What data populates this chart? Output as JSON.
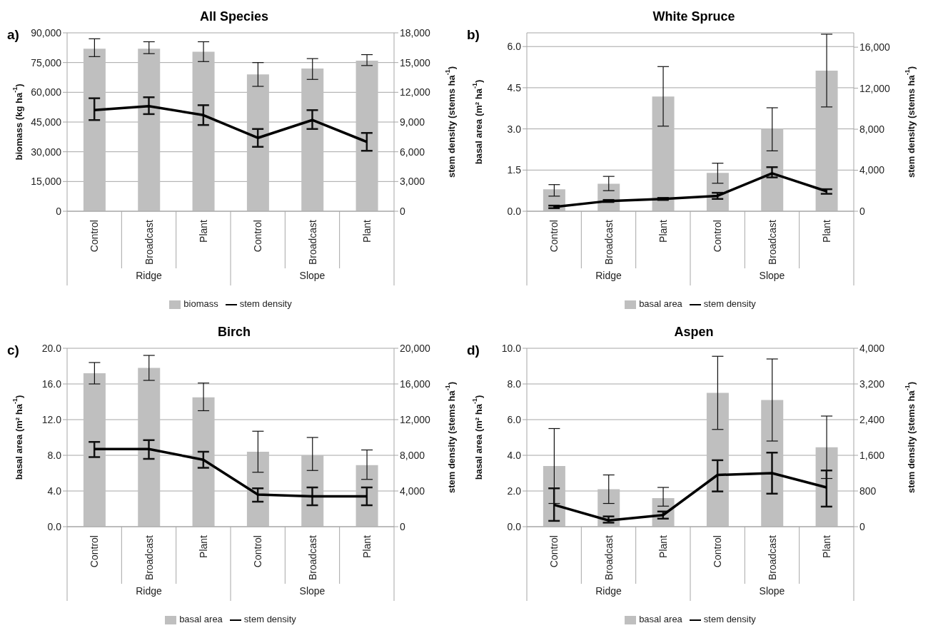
{
  "chart_data": [
    {
      "type": "bar",
      "title": "All Species",
      "annotations": [
        "a)",
        "Ridge",
        "Slope"
      ],
      "categories": [
        "Control",
        "Broadcast",
        "Plant",
        "Control",
        "Broadcast",
        "Plant"
      ],
      "ylabel": "biomass  (kg ha$^{-1}$)",
      "y2label": "stem density (stems ha$^{-1}$)",
      "ylim": [
        0,
        90000
      ],
      "yticks": [
        {
          "value": 0,
          "label": "0"
        },
        {
          "value": 15000,
          "label": "15,000"
        },
        {
          "value": 30000,
          "label": "30,000"
        },
        {
          "value": 45000,
          "label": "45,000"
        },
        {
          "value": 60000,
          "label": "60,000"
        },
        {
          "value": 75000,
          "label": "75,000"
        },
        {
          "value": 90000,
          "label": "90,000"
        }
      ],
      "y2lim": [
        0,
        18000
      ],
      "y2ticks": [
        {
          "value": 0,
          "label": "0"
        },
        {
          "value": 3000,
          "label": "3,000"
        },
        {
          "value": 6000,
          "label": "6,000"
        },
        {
          "value": 9000,
          "label": "9,000"
        },
        {
          "value": 12000,
          "label": "12,000"
        },
        {
          "value": 15000,
          "label": "15,000"
        },
        {
          "value": 18000,
          "label": "18,000"
        }
      ],
      "grid": "y",
      "legend": "bottom",
      "marker": "none",
      "series": [
        {
          "name": "biomass",
          "color": "#bfbfbf",
          "values": [
            82000,
            82000,
            80500,
            69000,
            72000,
            76000
          ],
          "errors": [
            [
              78000,
              87000
            ],
            [
              79500,
              85500
            ],
            [
              75500,
              85500
            ],
            [
              63000,
              75000
            ],
            [
              66500,
              77000
            ],
            [
              73500,
              79000
            ]
          ]
        },
        {
          "name": "stem density",
          "type": "line",
          "axis": "y2",
          "color": "#000000",
          "values": [
            10200,
            10600,
            9700,
            7400,
            9200,
            7000
          ],
          "errors": [
            [
              9200,
              11400
            ],
            [
              9800,
              11500
            ],
            [
              8700,
              10700
            ],
            [
              6500,
              8300
            ],
            [
              8300,
              10200
            ],
            [
              6100,
              7900
            ]
          ]
        }
      ]
    },
    {
      "type": "bar",
      "title": "White Spruce",
      "annotations": [
        "b)",
        "Ridge",
        "Slope"
      ],
      "categories": [
        "Control",
        "Broadcast",
        "Plant",
        "Control",
        "Broadcast",
        "Plant"
      ],
      "ylabel": "basal area (m² ha$^{-1}$)",
      "y2label": "stem density (stems ha$^{-1}$)",
      "ylim": [
        0,
        6.5
      ],
      "yticks": [
        {
          "value": 0,
          "label": "0.0"
        },
        1.5,
        {
          "value": 3,
          "label": "3.0"
        },
        4.5,
        {
          "value": 6,
          "label": "6.0"
        }
      ],
      "y2lim": [
        0,
        17400
      ],
      "y2ticks": [
        {
          "value": 0,
          "label": "0"
        },
        {
          "value": 4000,
          "label": "4,000"
        },
        {
          "value": 8000,
          "label": "8,000"
        },
        {
          "value": 12000,
          "label": "12,000"
        },
        {
          "value": 16000,
          "label": "16,000"
        }
      ],
      "grid": "y",
      "legend": "bottom",
      "marker": "none",
      "series": [
        {
          "name": "basal area",
          "color": "#bfbfbf",
          "values": [
            0.8,
            1.0,
            4.18,
            1.4,
            3.0,
            5.12
          ],
          "errors": [
            [
              0.55,
              0.97
            ],
            [
              0.75,
              1.27
            ],
            [
              3.1,
              5.27
            ],
            [
              1.02,
              1.75
            ],
            [
              2.2,
              3.77
            ],
            [
              3.8,
              6.45
            ]
          ]
        },
        {
          "name": "stem density",
          "type": "line",
          "axis": "y2",
          "color": "#000000",
          "values": [
            420,
            1000,
            1200,
            1500,
            3700,
            1950
          ],
          "errors": [
            [
              300,
              550
            ],
            [
              900,
              1100
            ],
            [
              1100,
              1300
            ],
            [
              1200,
              1800
            ],
            [
              3300,
              4300
            ],
            [
              1700,
              2150
            ]
          ]
        }
      ]
    },
    {
      "type": "bar",
      "title": "Birch",
      "annotations": [
        "c)",
        "Ridge",
        "Slope"
      ],
      "categories": [
        "Control",
        "Broadcast",
        "Plant",
        "Control",
        "Broadcast",
        "Plant"
      ],
      "ylabel": "basal area  (m² ha$^{-1}$)",
      "y2label": "stem density (stems ha$^{-1}$)",
      "ylim": [
        0,
        20
      ],
      "yticks": [
        {
          "value": 0,
          "label": "0.0"
        },
        {
          "value": 4,
          "label": "4.0"
        },
        {
          "value": 8,
          "label": "8.0"
        },
        {
          "value": 12,
          "label": "12.0"
        },
        {
          "value": 16,
          "label": "16.0"
        },
        {
          "value": 20,
          "label": "20.0"
        }
      ],
      "y2lim": [
        0,
        20000
      ],
      "y2ticks": [
        {
          "value": 0,
          "label": "0"
        },
        {
          "value": 4000,
          "label": "4,000"
        },
        {
          "value": 8000,
          "label": "8,000"
        },
        {
          "value": 12000,
          "label": "12,000"
        },
        {
          "value": 16000,
          "label": "16,000"
        },
        {
          "value": 20000,
          "label": "20,000"
        }
      ],
      "grid": "y",
      "legend": "bottom",
      "marker": "none",
      "series": [
        {
          "name": "basal area",
          "color": "#bfbfbf",
          "values": [
            17.2,
            17.8,
            14.5,
            8.4,
            8.0,
            6.9
          ],
          "errors": [
            [
              16.0,
              18.4
            ],
            [
              16.4,
              19.2
            ],
            [
              13.0,
              16.1
            ],
            [
              6.1,
              10.7
            ],
            [
              6.3,
              10.0
            ],
            [
              5.3,
              8.6
            ]
          ]
        },
        {
          "name": "stem density",
          "type": "line",
          "axis": "y2",
          "color": "#000000",
          "values": [
            8700,
            8700,
            7500,
            3600,
            3400,
            3400
          ],
          "errors": [
            [
              7800,
              9500
            ],
            [
              7600,
              9700
            ],
            [
              6600,
              8400
            ],
            [
              2800,
              4300
            ],
            [
              2400,
              4400
            ],
            [
              2400,
              4400
            ]
          ]
        }
      ]
    },
    {
      "type": "bar",
      "title": "Aspen",
      "annotations": [
        "d)",
        "Ridge",
        "Slope"
      ],
      "categories": [
        "Control",
        "Broadcast",
        "Plant",
        "Control",
        "Broadcast",
        "Plant"
      ],
      "ylabel": "basal area (m² ha$^{-1}$)",
      "y2label": "stem density (stems ha$^{-1}$)",
      "ylim": [
        0,
        10
      ],
      "yticks": [
        {
          "value": 0,
          "label": "0.0"
        },
        {
          "value": 2,
          "label": "2.0"
        },
        {
          "value": 4,
          "label": "4.0"
        },
        {
          "value": 6,
          "label": "6.0"
        },
        {
          "value": 8,
          "label": "8.0"
        },
        {
          "value": 10,
          "label": "10.0"
        }
      ],
      "y2lim": [
        0,
        4000
      ],
      "y2ticks": [
        {
          "value": 0,
          "label": "0"
        },
        800,
        {
          "value": 1600,
          "label": "1,600"
        },
        {
          "value": 2400,
          "label": "2,400"
        },
        {
          "value": 3200,
          "label": "3,200"
        },
        {
          "value": 4000,
          "label": "4,000"
        }
      ],
      "grid": "y",
      "legend": "bottom",
      "marker": "none",
      "series": [
        {
          "name": "basal area",
          "color": "#bfbfbf",
          "values": [
            3.4,
            2.1,
            1.6,
            7.5,
            7.1,
            4.45
          ],
          "errors": [
            [
              1.3,
              5.5
            ],
            [
              1.3,
              2.9
            ],
            [
              1.15,
              2.2
            ],
            [
              5.45,
              9.55
            ],
            [
              4.8,
              9.4
            ],
            [
              2.7,
              6.2
            ]
          ]
        },
        {
          "name": "stem density",
          "type": "line",
          "axis": "y2",
          "color": "#000000",
          "values": [
            490,
            140,
            260,
            1160,
            1200,
            880
          ],
          "errors": [
            [
              130,
              860
            ],
            [
              90,
              230
            ],
            [
              180,
              340
            ],
            [
              790,
              1490
            ],
            [
              740,
              1660
            ],
            [
              450,
              1260
            ]
          ]
        }
      ]
    }
  ]
}
